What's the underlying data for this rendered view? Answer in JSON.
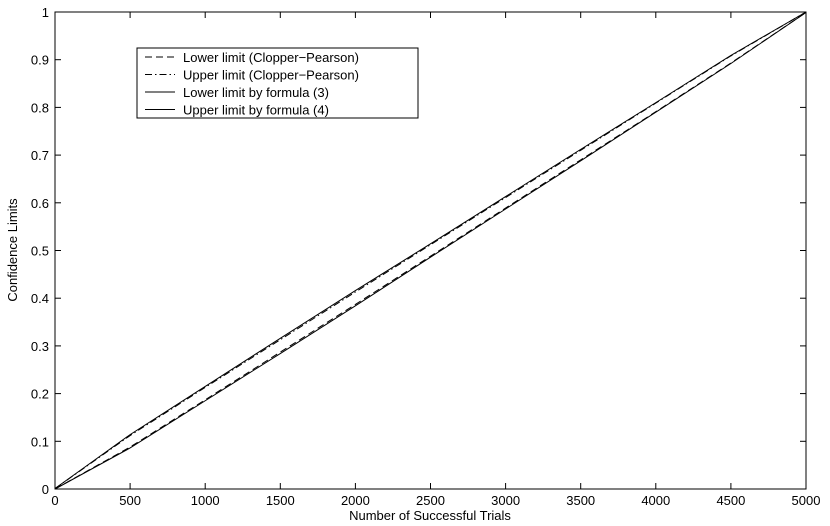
{
  "chart_data": {
    "type": "line",
    "xlabel": "Number of Successful Trials",
    "ylabel": "Confidence Limits",
    "x": [
      0,
      500,
      1000,
      1500,
      2000,
      2500,
      3000,
      3500,
      4000,
      4500,
      5000
    ],
    "series": [
      {
        "name": "Lower limit (Clopper−Pearson)",
        "color": "#000000",
        "dash": "dashed",
        "values": [
          0,
          0.088,
          0.187,
          0.287,
          0.387,
          0.488,
          0.589,
          0.69,
          0.791,
          0.893,
          0.999
        ]
      },
      {
        "name": "Upper limit (Clopper−Pearson)",
        "color": "#000000",
        "dash": "dashdot",
        "values": [
          0.001,
          0.112,
          0.213,
          0.313,
          0.413,
          0.512,
          0.611,
          0.71,
          0.809,
          0.908,
          1
        ]
      },
      {
        "name": "Lower limit by formula (3)",
        "color": "#000000",
        "dash": "solid",
        "values": [
          0,
          0.086,
          0.185,
          0.284,
          0.384,
          0.486,
          0.587,
          0.688,
          0.79,
          0.892,
          0.999
        ]
      },
      {
        "name": "Upper limit by formula (4)",
        "color": "#000000",
        "dash": "solid",
        "values": [
          0.001,
          0.114,
          0.215,
          0.316,
          0.416,
          0.514,
          0.613,
          0.712,
          0.81,
          0.909,
          1
        ]
      }
    ],
    "xlim": [
      0,
      5000
    ],
    "xticks": [
      0,
      500,
      1000,
      1500,
      2000,
      2500,
      3000,
      3500,
      4000,
      4500,
      5000
    ],
    "ylim": [
      0,
      1
    ],
    "yticks": [
      0,
      0.1,
      0.2,
      0.3,
      0.4,
      0.5,
      0.6,
      0.7,
      0.8,
      0.9,
      1
    ],
    "grid": false,
    "legend": "upper left"
  }
}
